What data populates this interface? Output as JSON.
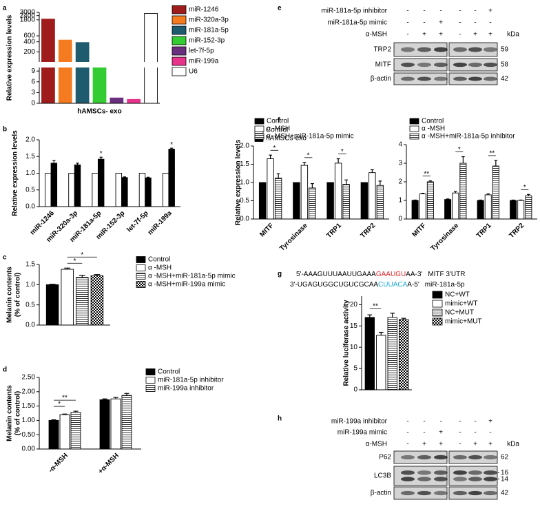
{
  "panels": [
    "a",
    "b",
    "c",
    "d",
    "e",
    "f",
    "g",
    "h"
  ],
  "chart_data": [
    {
      "type": "bar",
      "ylabel": "Relative expression levels",
      "categories": [
        "hAMSCs- exo"
      ],
      "series": [
        {
          "name": "miR-1246",
          "color": "#a01c1c",
          "values": [
            1900
          ]
        },
        {
          "name": "miR-320a-3p",
          "color": "#f47b20",
          "values": [
            450
          ]
        },
        {
          "name": "miR-181a-5p",
          "color": "#1f5b6e",
          "values": [
            380
          ]
        },
        {
          "name": "miR-152-3p",
          "color": "#33cc33",
          "values": [
            10
          ]
        },
        {
          "name": "let-7f-5p",
          "color": "#6b2f7f",
          "values": [
            1.5
          ]
        },
        {
          "name": "miR-199a",
          "color": "#e8338c",
          "values": [
            1.1
          ]
        },
        {
          "name": "U6",
          "color": "#ffffff",
          "values": [
            2800
          ]
        }
      ],
      "y_segments": [
        {
          "ylim": [
            0,
            10
          ],
          "yticks": [
            0,
            3,
            6,
            9
          ]
        },
        {
          "ylim": [
            100,
            3000
          ],
          "yticks": [
            200,
            400,
            600,
            1800,
            2400,
            3000
          ],
          "log": true
        }
      ]
    },
    {
      "type": "bar",
      "ylabel": "Relative expression levels",
      "categories": [
        "miR-1246",
        "miR-320a-3p",
        "miR-181a-5p",
        "miR-152-3p",
        "let-7f-5p",
        "miR-199a"
      ],
      "series": [
        {
          "name": "Control",
          "color": "#ffffff",
          "values": [
            1,
            1,
            1,
            1,
            1,
            1
          ]
        },
        {
          "name": "hAMSCs-exo",
          "color": "#000000",
          "values": [
            1.3,
            1.25,
            1.42,
            0.87,
            0.86,
            1.72
          ],
          "errors": [
            0.08,
            0.05,
            0.06,
            0.02,
            0.02,
            0.03
          ],
          "significance": [
            null,
            null,
            "*",
            null,
            null,
            "*"
          ]
        }
      ],
      "ylim": [
        0,
        2
      ],
      "yticks": [
        {
          "value": 0,
          "label": "0.0"
        },
        0.5,
        {
          "value": 1,
          "label": "1.0"
        },
        1.5,
        {
          "value": 2,
          "label": "2.0"
        }
      ]
    },
    {
      "type": "bar",
      "ylabel": [
        "Melanin contents",
        "(% of control)"
      ],
      "categories": [
        null
      ],
      "series": [
        {
          "name": "Control",
          "color": "#000000",
          "values": [
            1.0
          ],
          "errors": [
            0.01
          ]
        },
        {
          "name": "α -MSH",
          "color": "#ffffff",
          "values": [
            1.38
          ],
          "errors": [
            0.03
          ]
        },
        {
          "name": "α -MSH+miR-181a-5p mimic",
          "color": "#000000",
          "pattern": "hlines",
          "values": [
            1.18
          ],
          "errors": [
            0.05
          ]
        },
        {
          "name": "α -MSH+miR-199a mimic",
          "color": "#000000",
          "pattern": "checker",
          "values": [
            1.22
          ],
          "errors": [
            0.03
          ]
        }
      ],
      "comparisons": [
        {
          "category": 0,
          "series": [
            1,
            2
          ],
          "label": "*"
        },
        {
          "category": 0,
          "series": [
            1,
            3
          ],
          "label": "*"
        }
      ],
      "ylim": [
        0,
        1.5
      ],
      "yticks": [
        {
          "value": 0,
          "label": "0.0"
        },
        0.5,
        {
          "value": 1,
          "label": "1.0"
        },
        1.5
      ]
    },
    {
      "type": "bar",
      "ylabel": [
        "Melanin contents",
        "(% of control)"
      ],
      "categories": [
        "-α-MSH",
        "+α-MSH"
      ],
      "series": [
        {
          "name": "Control",
          "color": "#000000",
          "values": [
            1.0,
            1.72
          ],
          "errors": [
            0.02,
            0.03
          ]
        },
        {
          "name": "miR-181a-5p inhibitor",
          "color": "#ffffff",
          "values": [
            1.2,
            1.75
          ],
          "errors": [
            0.02,
            0.05
          ]
        },
        {
          "name": "miR-199a inhibitor",
          "color": "#000000",
          "pattern": "hlines",
          "values": [
            1.28,
            1.87
          ],
          "errors": [
            0.04,
            0.07
          ]
        }
      ],
      "comparisons": [
        {
          "category": 0,
          "series": [
            0,
            1
          ],
          "label": "*"
        },
        {
          "category": 0,
          "series": [
            0,
            2
          ],
          "label": "**"
        }
      ],
      "ylim": [
        0,
        2.5
      ],
      "yticks": [
        {
          "value": 0,
          "label": "0.00"
        },
        {
          "value": 0.5,
          "label": "0.50"
        },
        {
          "value": 1,
          "label": "1.00"
        },
        {
          "value": 1.5,
          "label": "1.50"
        },
        {
          "value": 2,
          "label": "2.00"
        },
        {
          "value": 2.5,
          "label": "2.50"
        }
      ]
    },
    {
      "type": "bar",
      "ylabel": "Relative expression levels",
      "categories": [
        "MITF",
        "Tyrosinase",
        "TRP1",
        "TRP2"
      ],
      "series": [
        {
          "name": "Control",
          "color": "#000000",
          "values": [
            1,
            1,
            1,
            1
          ]
        },
        {
          "name": "α -MSH",
          "color": "#ffffff",
          "values": [
            1.65,
            1.47,
            1.53,
            1.27
          ],
          "errors": [
            0.1,
            0.08,
            0.12,
            0.08
          ]
        },
        {
          "name": "α -MSH+miR-181a-5p mimic",
          "color": "#000000",
          "pattern": "hlines",
          "values": [
            1.12,
            0.85,
            0.95,
            0.92
          ],
          "errors": [
            0.12,
            0.12,
            0.12,
            0.12
          ]
        }
      ],
      "comparisons": [
        {
          "category": 0,
          "series": [
            1,
            2
          ],
          "label": "*"
        },
        {
          "category": 1,
          "series": [
            1,
            2
          ],
          "label": "*"
        },
        {
          "category": 2,
          "series": [
            1,
            2
          ],
          "label": "*"
        }
      ],
      "ylim": [
        0,
        2
      ],
      "yticks": [
        {
          "value": 0,
          "label": "0.0"
        },
        0.5,
        {
          "value": 1,
          "label": "1.0"
        },
        1.5,
        {
          "value": 2,
          "label": "2.0"
        }
      ]
    },
    {
      "type": "bar",
      "categories": [
        "MITF",
        "Tyrosinase",
        "TRP1",
        "TRP2"
      ],
      "series": [
        {
          "name": "Control",
          "color": "#000000",
          "values": [
            1,
            1.05,
            1,
            1
          ],
          "errors": [
            0.02,
            0.03,
            0.02,
            0.02
          ]
        },
        {
          "name": "α -MSH",
          "color": "#ffffff",
          "values": [
            1.35,
            1.4,
            1.3,
            1.0
          ],
          "errors": [
            0.03,
            0.08,
            0.05,
            0.02
          ]
        },
        {
          "name": "α -MSH+miR-181a-5p inhibitor",
          "color": "#000000",
          "pattern": "hlines",
          "values": [
            2.0,
            3.0,
            2.85,
            1.25
          ],
          "errors": [
            0.05,
            0.35,
            0.3,
            0.07
          ]
        }
      ],
      "comparisons": [
        {
          "category": 0,
          "series": [
            1,
            2
          ],
          "label": "**"
        },
        {
          "category": 1,
          "series": [
            1,
            2
          ],
          "label": "*"
        },
        {
          "category": 2,
          "series": [
            1,
            2
          ],
          "label": "**"
        },
        {
          "category": 3,
          "series": [
            1,
            2
          ],
          "label": "*"
        }
      ],
      "ylim": [
        0,
        4
      ],
      "yticks": [
        0,
        1,
        2,
        3,
        4
      ]
    },
    {
      "type": "bar",
      "ylabel": "Relative luciferase activity",
      "categories": [
        null
      ],
      "series": [
        {
          "name": "NC+WT",
          "color": "#000000",
          "values": [
            17
          ],
          "errors": [
            0.6
          ]
        },
        {
          "name": "mimic+WT",
          "color": "#ffffff",
          "values": [
            12.8
          ],
          "errors": [
            0.7
          ]
        },
        {
          "name": "NC+MUT",
          "color": "#000000",
          "pattern": "hlines",
          "values": [
            17
          ],
          "errors": [
            1
          ]
        },
        {
          "name": "mimic+MUT",
          "color": "#000000",
          "pattern": "checker",
          "values": [
            16.5
          ],
          "errors": [
            0.3
          ]
        }
      ],
      "comparisons": [
        {
          "category": 0,
          "series": [
            0,
            1
          ],
          "label": "**"
        }
      ],
      "ylim": [
        0,
        22
      ],
      "yticks": [
        0,
        5,
        10,
        15,
        20
      ]
    }
  ],
  "blots": [
    {
      "treatments": [
        {
          "name": "miR-181a-5p inhibitor",
          "signs": [
            "-",
            "-",
            "-",
            "-",
            "-",
            "+"
          ]
        },
        {
          "name": "miR-181a-5p mimic",
          "signs": [
            "-",
            "-",
            "+",
            "-",
            "-",
            "-"
          ]
        },
        {
          "name": "α-MSH",
          "signs": [
            "-",
            "+",
            "+",
            "-",
            "+",
            "+"
          ]
        }
      ],
      "unit": "kDa",
      "rows": [
        {
          "name": "TRP2",
          "kda": [
            59
          ]
        },
        {
          "name": "MITF",
          "kda": [
            58
          ]
        },
        {
          "name": "β-actin",
          "kda": [
            42
          ]
        }
      ]
    },
    {
      "treatments": [
        {
          "name": "miR-199a inhibitor",
          "signs": [
            "-",
            "-",
            "-",
            "-",
            "-",
            "+"
          ]
        },
        {
          "name": "miR-199a mimic",
          "signs": [
            "-",
            "-",
            "+",
            "-",
            "-",
            "-"
          ]
        },
        {
          "name": "α-MSH",
          "signs": [
            "-",
            "+",
            "+",
            "-",
            "+",
            "+"
          ]
        }
      ],
      "unit": "kDa",
      "rows": [
        {
          "name": "P62",
          "kda": [
            62
          ]
        },
        {
          "name": "LC3B",
          "kda": [
            16,
            14
          ]
        },
        {
          "name": "β-actin",
          "kda": [
            42
          ]
        }
      ]
    }
  ],
  "sequence": {
    "highlight": [
      "#e8262a",
      "#19a9d6"
    ],
    "lines": [
      {
        "parts": [
          "5'-AAAGUUUAAUUGAAA",
          "GAAUGU",
          "AA-3'"
        ],
        "name": "MITF 3'UTR"
      },
      {
        "parts": [
          "3'-UGAGUGGCUGUCGCAA",
          "CUUACA",
          "A-5'"
        ],
        "name": "miR-181a-5p"
      }
    ]
  }
}
